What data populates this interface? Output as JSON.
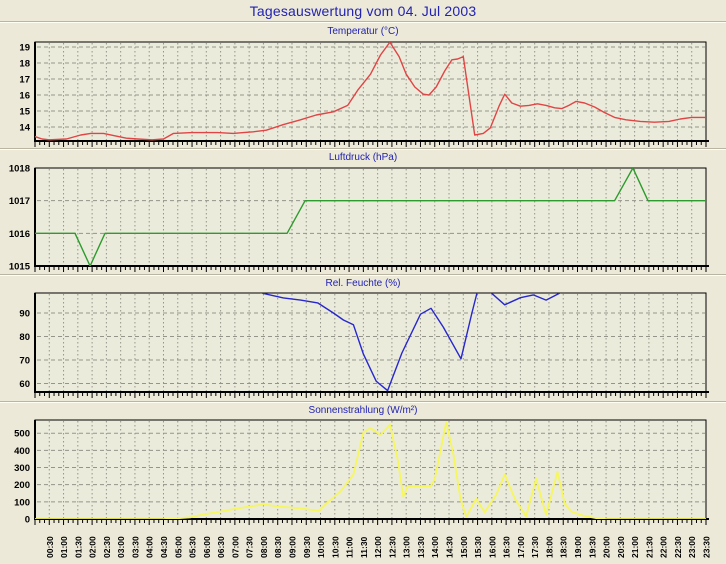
{
  "page_title": "Tagesauswertung vom 04. Jul 2003",
  "colors": {
    "page_bg": "#ece9d8",
    "plot_bg": "#ebebdc",
    "grid": "#94948a",
    "axis": "#000000",
    "title_text": "#2222b2",
    "tick_text": "#000000",
    "temperature": "#e04545",
    "pressure": "#2e9b2e",
    "humidity": "#2727cd",
    "radiation": "#f6f65e"
  },
  "x_axis": {
    "range_hours": [
      0,
      23.5
    ],
    "major_tick_hours": 0.5,
    "minor_tick_hours": 0.1667,
    "labels": [
      "00:30",
      "01:00",
      "01:30",
      "02:00",
      "02:30",
      "03:00",
      "03:30",
      "04:00",
      "04:30",
      "05:00",
      "05:30",
      "06:00",
      "06:30",
      "07:00",
      "07:30",
      "08:00",
      "08:30",
      "09:00",
      "09:30",
      "10:00",
      "10:30",
      "11:00",
      "11:30",
      "12:00",
      "12:30",
      "13:00",
      "13:30",
      "14:00",
      "14:30",
      "15:00",
      "15:30",
      "16:00",
      "16:30",
      "17:00",
      "17:30",
      "18:00",
      "18:30",
      "19:00",
      "19:30",
      "20:00",
      "20:30",
      "21:00",
      "21:30",
      "22:00",
      "22:30",
      "23:00",
      "23:30"
    ]
  },
  "chart_data": [
    {
      "type": "line",
      "title": "Temperatur (°C)",
      "color": "#e04545",
      "ylim": [
        13.125,
        19.3125
      ],
      "yticks": [
        14,
        15,
        16,
        17,
        18,
        19
      ],
      "grid": true,
      "points": [
        [
          0,
          13.4
        ],
        [
          0.25,
          13.25
        ],
        [
          0.5,
          13.2
        ],
        [
          1.1,
          13.25
        ],
        [
          1.6,
          13.5
        ],
        [
          1.95,
          13.6
        ],
        [
          2.4,
          13.6
        ],
        [
          2.8,
          13.45
        ],
        [
          3.2,
          13.3
        ],
        [
          3.6,
          13.25
        ],
        [
          4.1,
          13.2
        ],
        [
          4.5,
          13.25
        ],
        [
          4.85,
          13.6
        ],
        [
          5.5,
          13.65
        ],
        [
          6.4,
          13.65
        ],
        [
          6.95,
          13.6
        ],
        [
          7.3,
          13.65
        ],
        [
          7.65,
          13.7
        ],
        [
          8.1,
          13.8
        ],
        [
          8.7,
          14.15
        ],
        [
          9.3,
          14.45
        ],
        [
          9.85,
          14.75
        ],
        [
          10.45,
          14.95
        ],
        [
          10.95,
          15.35
        ],
        [
          11.3,
          16.3
        ],
        [
          11.75,
          17.3
        ],
        [
          12.1,
          18.5
        ],
        [
          12.43,
          19.3
        ],
        [
          12.75,
          18.4
        ],
        [
          13,
          17.3
        ],
        [
          13.3,
          16.5
        ],
        [
          13.6,
          16.05
        ],
        [
          13.8,
          16.0
        ],
        [
          14.05,
          16.5
        ],
        [
          14.35,
          17.5
        ],
        [
          14.6,
          18.2
        ],
        [
          14.8,
          18.25
        ],
        [
          15,
          18.4
        ],
        [
          15.4,
          13.5
        ],
        [
          15.7,
          13.6
        ],
        [
          15.95,
          13.95
        ],
        [
          16.25,
          15.3
        ],
        [
          16.45,
          16.05
        ],
        [
          16.7,
          15.5
        ],
        [
          17,
          15.3
        ],
        [
          17.3,
          15.35
        ],
        [
          17.6,
          15.45
        ],
        [
          17.9,
          15.35
        ],
        [
          18.2,
          15.2
        ],
        [
          18.45,
          15.15
        ],
        [
          18.7,
          15.35
        ],
        [
          18.95,
          15.6
        ],
        [
          19.25,
          15.5
        ],
        [
          19.6,
          15.25
        ],
        [
          19.95,
          14.9
        ],
        [
          20.3,
          14.6
        ],
        [
          20.7,
          14.45
        ],
        [
          21.2,
          14.35
        ],
        [
          21.7,
          14.3
        ],
        [
          22.2,
          14.35
        ],
        [
          22.6,
          14.5
        ],
        [
          23,
          14.6
        ],
        [
          23.5,
          14.6
        ]
      ]
    },
    {
      "type": "line",
      "title": "Luftdruck (hPa)",
      "color": "#2e9b2e",
      "ylim": [
        1015,
        1018
      ],
      "yticks": [
        1015,
        1016,
        1017,
        1018
      ],
      "grid": true,
      "points": [
        [
          0,
          1016
        ],
        [
          1.4,
          1016
        ],
        [
          1.93,
          1015
        ],
        [
          2.45,
          1016
        ],
        [
          8.83,
          1016
        ],
        [
          9.46,
          1017
        ],
        [
          20.3,
          1017
        ],
        [
          20.94,
          1018
        ],
        [
          21.47,
          1017
        ],
        [
          23.5,
          1017
        ]
      ]
    },
    {
      "type": "line",
      "title": "Rel. Feuchte (%)",
      "color": "#2727cd",
      "ylim": [
        56.4,
        98.5
      ],
      "yticks": [
        60,
        70,
        80,
        90
      ],
      "grid": true,
      "points": [
        [
          0,
          99.5
        ],
        [
          7.7,
          99.5
        ],
        [
          8,
          98.3
        ],
        [
          8.7,
          96.4
        ],
        [
          9.3,
          95.5
        ],
        [
          9.9,
          94.3
        ],
        [
          10.45,
          90
        ],
        [
          10.8,
          87
        ],
        [
          11.15,
          85
        ],
        [
          11.5,
          72.5
        ],
        [
          11.95,
          61
        ],
        [
          12.35,
          57
        ],
        [
          12.85,
          73
        ],
        [
          13.5,
          89.5
        ],
        [
          13.87,
          92
        ],
        [
          14.3,
          84
        ],
        [
          14.92,
          70.5
        ],
        [
          15.3,
          90
        ],
        [
          15.5,
          99.5
        ],
        [
          15.85,
          99.5
        ],
        [
          16,
          98.3
        ],
        [
          16.45,
          93.5
        ],
        [
          17,
          96.5
        ],
        [
          17.45,
          97.7
        ],
        [
          17.9,
          95.5
        ],
        [
          18.35,
          98.3
        ],
        [
          18.55,
          99.5
        ],
        [
          23.5,
          99.5
        ]
      ]
    },
    {
      "type": "line",
      "title": "Sonnenstrahlung (W/m²)",
      "color": "#f6f65e",
      "ylim": [
        0,
        577
      ],
      "yticks": [
        0,
        100,
        200,
        300,
        400,
        500
      ],
      "grid": true,
      "points": [
        [
          0,
          0
        ],
        [
          4.5,
          0
        ],
        [
          4.85,
          3
        ],
        [
          5.45,
          10
        ],
        [
          5.85,
          25
        ],
        [
          6.4,
          40
        ],
        [
          6.85,
          55
        ],
        [
          7.4,
          70
        ],
        [
          7.8,
          80
        ],
        [
          8,
          85
        ],
        [
          8.4,
          76
        ],
        [
          8.75,
          70
        ],
        [
          9.3,
          62
        ],
        [
          9.75,
          52
        ],
        [
          9.95,
          48
        ],
        [
          10.2,
          90
        ],
        [
          10.7,
          160
        ],
        [
          11.15,
          260
        ],
        [
          11.5,
          505
        ],
        [
          11.75,
          530
        ],
        [
          12.1,
          490
        ],
        [
          12.43,
          550
        ],
        [
          12.7,
          350
        ],
        [
          12.9,
          130
        ],
        [
          13.05,
          190
        ],
        [
          13.85,
          190
        ],
        [
          14,
          230
        ],
        [
          14.4,
          565
        ],
        [
          14.65,
          380
        ],
        [
          14.9,
          120
        ],
        [
          15.1,
          12
        ],
        [
          15.45,
          118
        ],
        [
          15.75,
          40
        ],
        [
          16.15,
          140
        ],
        [
          16.45,
          260
        ],
        [
          16.8,
          120
        ],
        [
          17.2,
          15
        ],
        [
          17.55,
          235
        ],
        [
          17.9,
          25
        ],
        [
          18.3,
          275
        ],
        [
          18.55,
          90
        ],
        [
          18.8,
          42
        ],
        [
          19.2,
          20
        ],
        [
          19.65,
          5
        ],
        [
          20,
          0
        ],
        [
          23.5,
          0
        ]
      ]
    }
  ]
}
